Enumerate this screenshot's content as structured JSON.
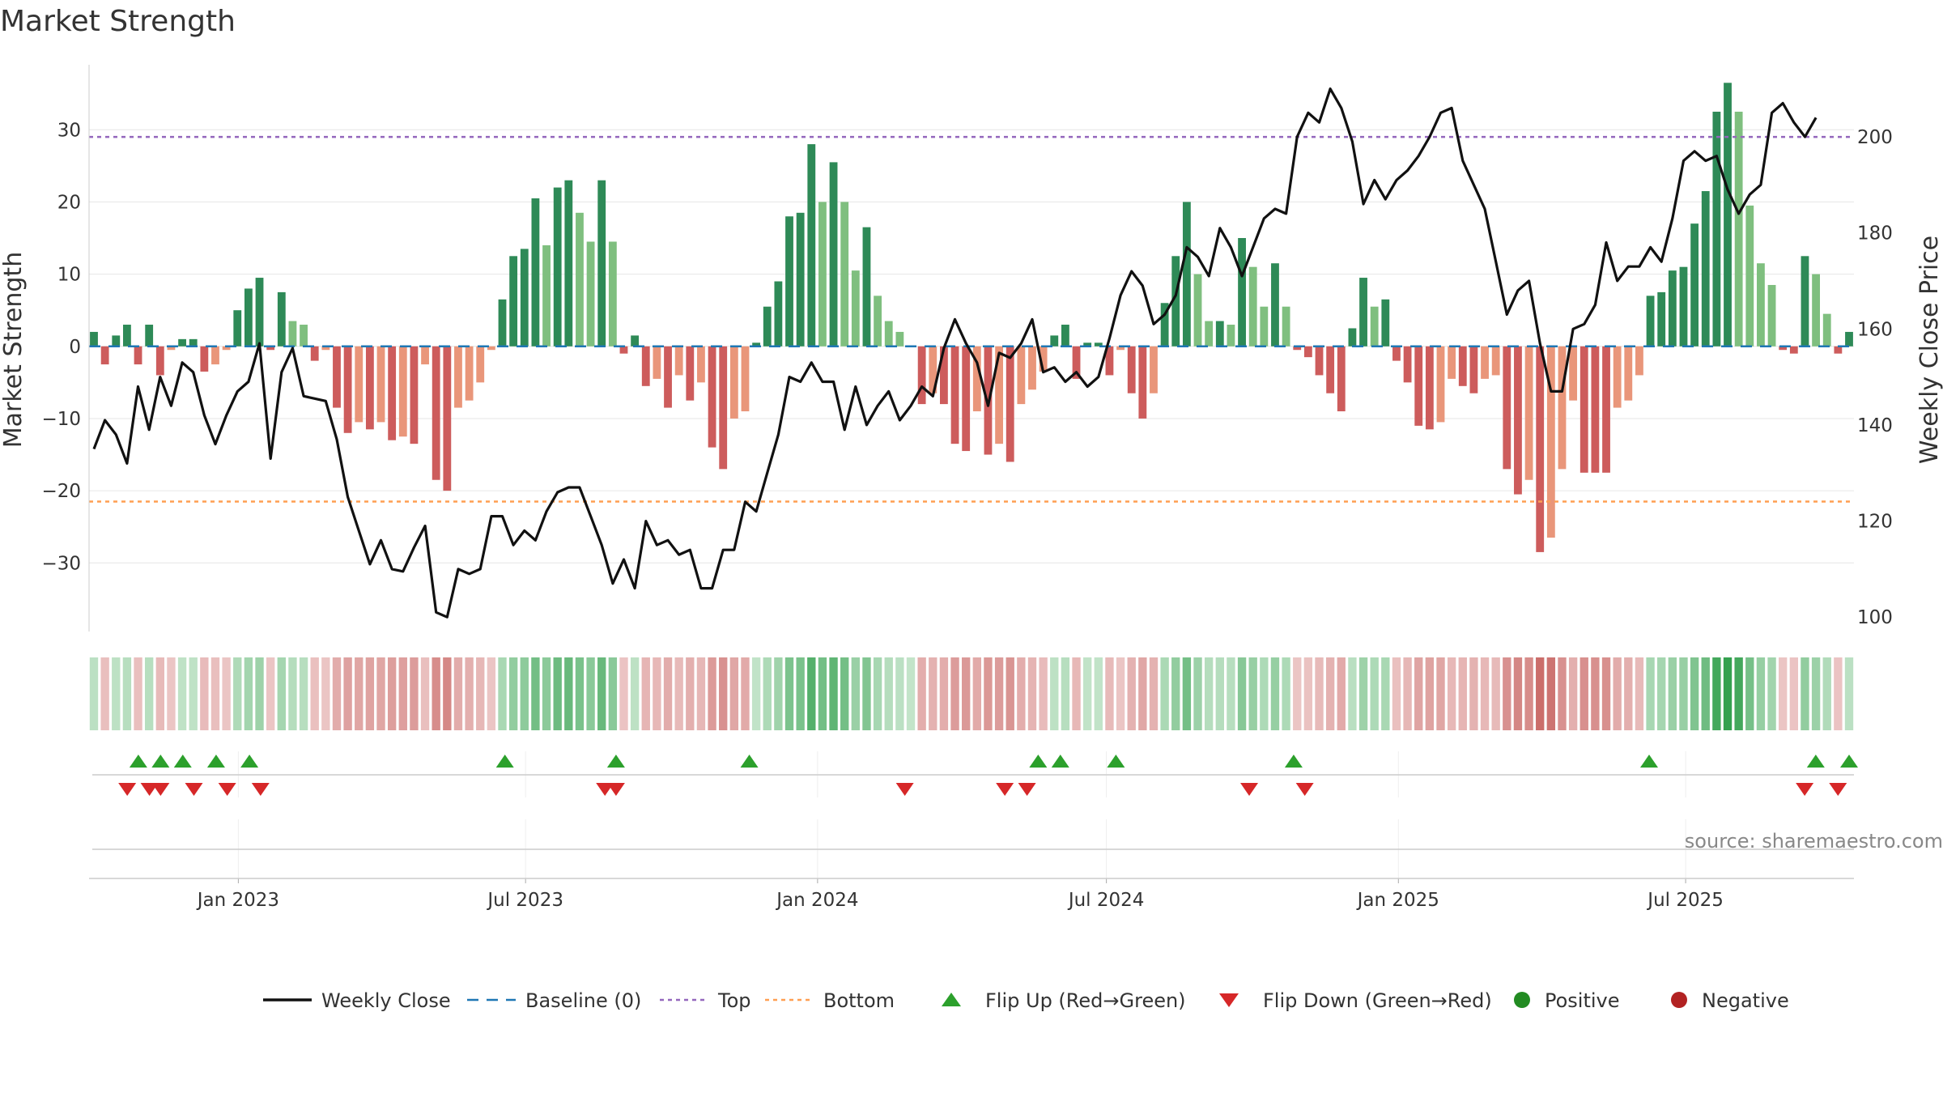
{
  "chart_data": {
    "type": "bar+line",
    "title": "Market Strength",
    "ylabel": "Market Strength",
    "ylabel2": "Weekly Close Price",
    "ylim": [
      -39.5,
      39
    ],
    "y2lim": [
      97,
      215
    ],
    "yticks": [
      -30,
      -20,
      -10,
      0,
      10,
      20,
      30
    ],
    "ytick_labels": [
      "−30",
      "−20",
      "−10",
      "0",
      "10",
      "20",
      "30"
    ],
    "y2ticks": [
      100,
      120,
      140,
      160,
      180,
      200
    ],
    "y2tick_labels": [
      "100",
      "120",
      "140",
      "160",
      "180",
      "200"
    ],
    "x_start": "2022-10-02",
    "x_end": "2025-10-12",
    "xticks": [
      "2023-01-01",
      "2023-07-01",
      "2024-01-01",
      "2024-07-01",
      "2025-01-01",
      "2025-07-01"
    ],
    "xtick_labels": [
      "Jan 2023",
      "Jul 2023",
      "Jan 2024",
      "Jul 2024",
      "Jan 2025",
      "Jul 2025"
    ],
    "top_level": 29,
    "bottom_level": -21.5,
    "strength": [
      2,
      -2.5,
      1.5,
      3,
      -2.5,
      3,
      -4,
      -0.5,
      1,
      1,
      -3.5,
      -2.5,
      -0.5,
      5,
      8,
      9.5,
      -0.5,
      7.5,
      3.5,
      3,
      -2,
      -0.5,
      -8.5,
      -12,
      -10.5,
      -11.5,
      -10.5,
      -13,
      -12.5,
      -13.5,
      -2.5,
      -18.5,
      -20,
      -8.5,
      -7.5,
      -5,
      -0.5,
      6.5,
      12.5,
      13.5,
      20.5,
      14,
      22,
      23,
      18.5,
      14.5,
      23,
      14.5,
      -1,
      1.5,
      -5.5,
      -4.5,
      -8.5,
      -4,
      -7.5,
      -5,
      -14,
      -17,
      -10,
      -9,
      0.5,
      5.5,
      9,
      18,
      18.5,
      28,
      20,
      25.5,
      20,
      10.5,
      16.5,
      7,
      3.5,
      2,
      0,
      -8,
      -6.5,
      -8,
      -13.5,
      -14.5,
      -9,
      -15,
      -13.5,
      -16,
      -8,
      -6,
      -3.5,
      1.5,
      3,
      -4.5,
      0.5,
      0.5,
      -4,
      -0.5,
      -6.5,
      -10,
      -6.5,
      6,
      12.5,
      20,
      10,
      3.5,
      3.5,
      3,
      15,
      11,
      5.5,
      11.5,
      5.5,
      -0.5,
      -1.5,
      -4,
      -6.5,
      -9,
      2.5,
      9.5,
      5.5,
      6.5,
      -2,
      -5,
      -11,
      -11.5,
      -10.5,
      -4.5,
      -5.5,
      -6.5,
      -4.5,
      -4,
      -17,
      -20.5,
      -18.5,
      -28.5,
      -26.5,
      -17,
      -7.5,
      -17.5,
      -17.5,
      -17.5,
      -8.5,
      -7.5,
      -4,
      7,
      7.5,
      10.5,
      11,
      17,
      21.5,
      32.5,
      36.5,
      32.5,
      19.5,
      11.5,
      8.5,
      -0.5,
      -1,
      12.5,
      10,
      4.5,
      -1,
      2
    ],
    "close": [
      135,
      141,
      138,
      132,
      148,
      139,
      150,
      144,
      153,
      151,
      142,
      136,
      142,
      147,
      149,
      157,
      133,
      151,
      156,
      146,
      145.5,
      145,
      137,
      125,
      118,
      111,
      116,
      110,
      109.5,
      114.5,
      119,
      101,
      100,
      110,
      109,
      110,
      121,
      121,
      115,
      118,
      116,
      122,
      126,
      127,
      127,
      121,
      115,
      107,
      112,
      106,
      120,
      115,
      116,
      113,
      114,
      106,
      106,
      114,
      114,
      124,
      122,
      130,
      138,
      150,
      149,
      153,
      149,
      149,
      139,
      148,
      140,
      144,
      147,
      141,
      144,
      148,
      146,
      156,
      162,
      157,
      153,
      144,
      155,
      154,
      157,
      162,
      151,
      152,
      149,
      151,
      148,
      150,
      158,
      167,
      172,
      169,
      161,
      163,
      167,
      177,
      175,
      171,
      181,
      177,
      171,
      177,
      183,
      185,
      184,
      200,
      205,
      203,
      210,
      206,
      199,
      186,
      191,
      187,
      191,
      193,
      196,
      200,
      205,
      206,
      195,
      190,
      185,
      174,
      163,
      168,
      170,
      157,
      147,
      147,
      160,
      161,
      165,
      178,
      170,
      173,
      173,
      177,
      174,
      183,
      195,
      197,
      195,
      196,
      189,
      184,
      188,
      190,
      205,
      207,
      203,
      200,
      204
    ],
    "flip_up": [
      "2022-10-30",
      "2022-11-13",
      "2022-11-27",
      "2022-12-18",
      "2023-01-08",
      "2023-06-18",
      "2023-08-27",
      "2023-11-19",
      "2024-05-19",
      "2024-06-02",
      "2024-07-07",
      "2024-10-27",
      "2025-06-08",
      "2025-09-21",
      "2025-10-12"
    ],
    "flip_down": [
      "2022-10-23",
      "2022-11-06",
      "2022-11-13",
      "2022-12-04",
      "2022-12-25",
      "2023-01-15",
      "2023-08-20",
      "2023-08-27",
      "2024-02-25",
      "2024-04-28",
      "2024-05-12",
      "2024-09-29",
      "2024-11-03",
      "2025-09-14",
      "2025-10-05"
    ],
    "heat_index": "Market Strength (heat strip)",
    "source": "source: sharemaestro.com",
    "colors": {
      "strong_green": "#2e8a57",
      "light_green": "#7fbf7f",
      "strong_red": "#cd5c5c",
      "light_red": "#e9967a",
      "close_line": "#111111",
      "baseline": "#1f77b4",
      "top": "#9467bd",
      "bottom": "#ff9f52",
      "flip_up": "#2ca02c",
      "flip_down": "#d62728",
      "positive": "#228b22",
      "negative": "#b22222"
    },
    "legend": [
      {
        "key": "close",
        "label": "Weekly Close"
      },
      {
        "key": "baseline",
        "label": "Baseline (0)"
      },
      {
        "key": "top",
        "label": "Top"
      },
      {
        "key": "bottom",
        "label": "Bottom"
      },
      {
        "key": "flip_up",
        "label": "Flip Up (Red→Green)"
      },
      {
        "key": "flip_down",
        "label": "Flip Down (Green→Red)"
      },
      {
        "key": "positive",
        "label": "Positive"
      },
      {
        "key": "negative",
        "label": "Negative"
      }
    ]
  }
}
